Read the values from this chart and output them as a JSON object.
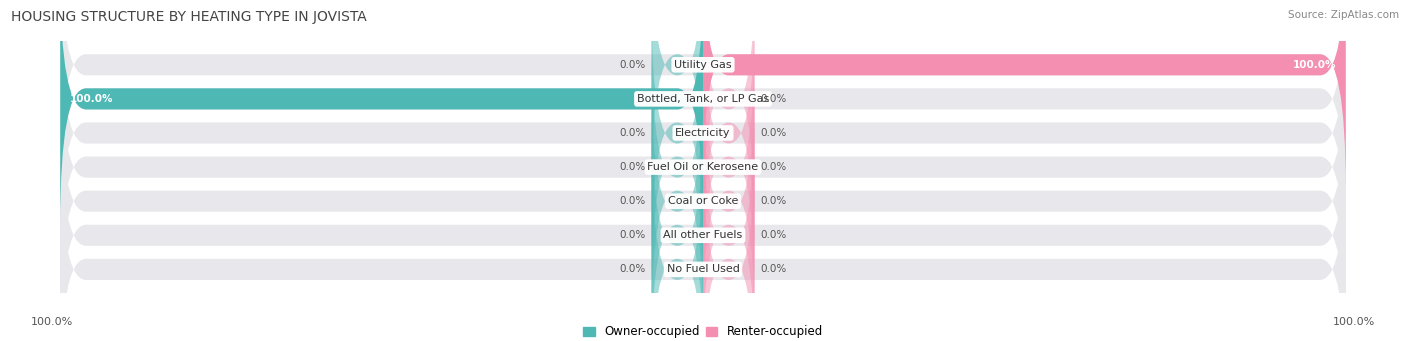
{
  "title": "HOUSING STRUCTURE BY HEATING TYPE IN JOVISTA",
  "source": "Source: ZipAtlas.com",
  "categories": [
    "Utility Gas",
    "Bottled, Tank, or LP Gas",
    "Electricity",
    "Fuel Oil or Kerosene",
    "Coal or Coke",
    "All other Fuels",
    "No Fuel Used"
  ],
  "owner_values": [
    0.0,
    100.0,
    0.0,
    0.0,
    0.0,
    0.0,
    0.0
  ],
  "renter_values": [
    100.0,
    0.0,
    0.0,
    0.0,
    0.0,
    0.0,
    0.0
  ],
  "owner_color": "#4db8b4",
  "renter_color": "#f48fb1",
  "bar_bg_color": "#e8e8ec",
  "background_color": "#ffffff",
  "title_fontsize": 10,
  "source_fontsize": 7.5,
  "cat_label_fontsize": 8,
  "val_label_fontsize": 7.5,
  "bar_height": 0.62,
  "stub_size": 8.0,
  "xlim": 105,
  "bottom_label": "100.0%"
}
